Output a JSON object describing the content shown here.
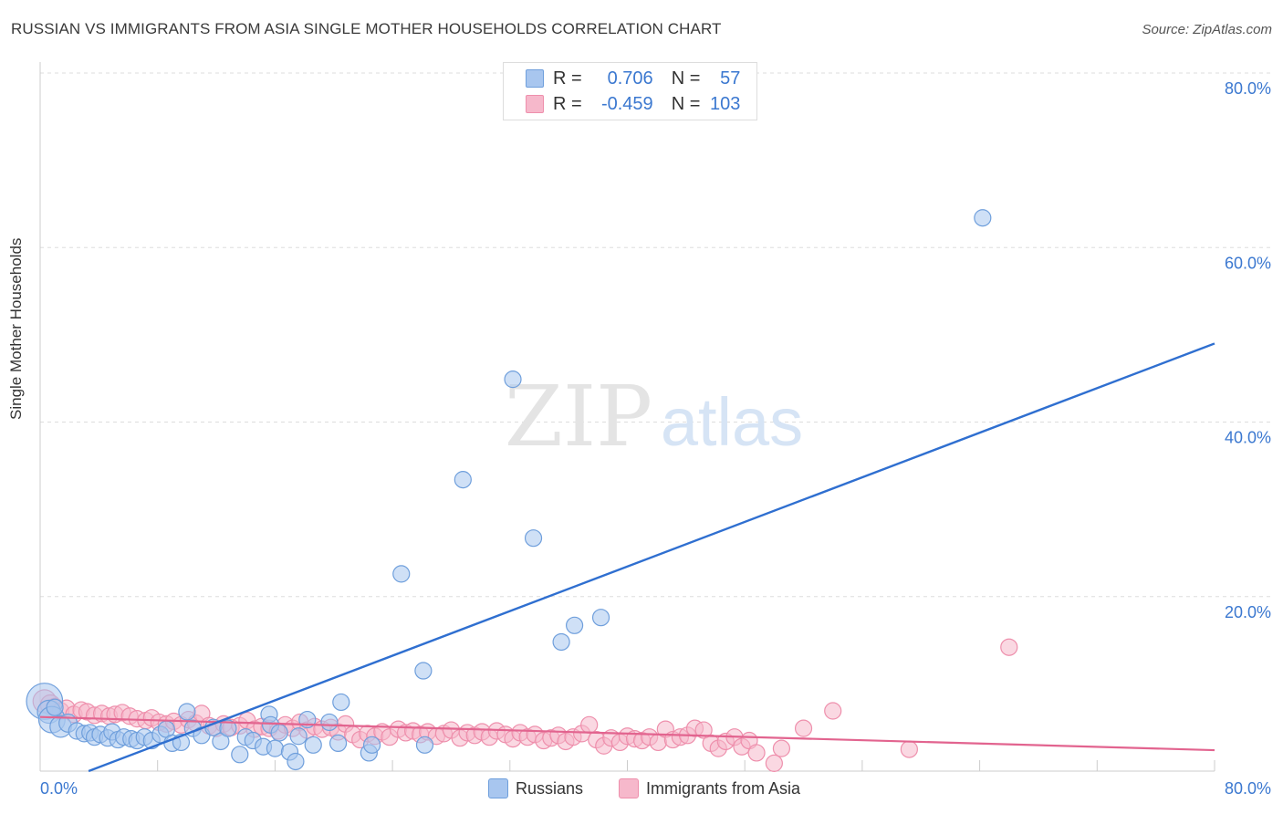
{
  "header": {
    "title": "RUSSIAN VS IMMIGRANTS FROM ASIA SINGLE MOTHER HOUSEHOLDS CORRELATION CHART",
    "source": "Source: ZipAtlas.com"
  },
  "watermark": {
    "zip": "ZIP",
    "atlas": "atlas"
  },
  "colors": {
    "russians_fill": "#a8c6ef",
    "russians_stroke": "#6f9fdc",
    "russians_line": "#2f6fd0",
    "asia_fill": "#f6b8cb",
    "asia_stroke": "#ee8fac",
    "asia_line": "#e2648f",
    "tick_label": "#3b78d0",
    "grid": "#dddddd"
  },
  "legend": {
    "rows": [
      {
        "r_label": "R =",
        "r_value": "0.706",
        "n_label": "N =",
        "n_value": "57"
      },
      {
        "r_label": "R =",
        "r_value": "-0.459",
        "n_label": "N =",
        "n_value": "103"
      }
    ]
  },
  "bottom_legend": {
    "russians": "Russians",
    "asia": "Immigrants from Asia"
  },
  "chart_data": {
    "type": "scatter",
    "title": "RUSSIAN VS IMMIGRANTS FROM ASIA SINGLE MOTHER HOUSEHOLDS CORRELATION CHART",
    "xlabel": "",
    "ylabel": "Single Mother Households",
    "xlim": [
      0,
      80
    ],
    "ylim": [
      0,
      80
    ],
    "x_tick_labels": [
      "0.0%",
      "80.0%"
    ],
    "y_ticks": [
      20,
      40,
      60,
      80
    ],
    "y_tick_labels": [
      "20.0%",
      "40.0%",
      "60.0%",
      "80.0%"
    ],
    "series": [
      {
        "name": "Russians",
        "R": 0.706,
        "N": 57,
        "trend": {
          "x": [
            3.3,
            80
          ],
          "y": [
            0,
            49
          ]
        },
        "points": [
          {
            "x": 0.3,
            "y": 8.0,
            "s": 2.2
          },
          {
            "x": 0.6,
            "y": 6.8,
            "s": 1.4
          },
          {
            "x": 0.8,
            "y": 5.9,
            "s": 1.6
          },
          {
            "x": 1.0,
            "y": 7.3,
            "s": 1
          },
          {
            "x": 1.4,
            "y": 5.1,
            "s": 1.3
          },
          {
            "x": 1.9,
            "y": 5.5,
            "s": 1.1
          },
          {
            "x": 2.5,
            "y": 4.6,
            "s": 1
          },
          {
            "x": 3.0,
            "y": 4.3,
            "s": 1
          },
          {
            "x": 3.4,
            "y": 4.4,
            "s": 1
          },
          {
            "x": 3.7,
            "y": 3.9,
            "s": 1
          },
          {
            "x": 4.1,
            "y": 4.2,
            "s": 1
          },
          {
            "x": 4.6,
            "y": 3.8,
            "s": 1
          },
          {
            "x": 4.9,
            "y": 4.5,
            "s": 1
          },
          {
            "x": 5.3,
            "y": 3.6,
            "s": 1
          },
          {
            "x": 5.7,
            "y": 3.9,
            "s": 1
          },
          {
            "x": 6.2,
            "y": 3.7,
            "s": 1
          },
          {
            "x": 6.6,
            "y": 3.5,
            "s": 1
          },
          {
            "x": 7.1,
            "y": 3.9,
            "s": 1
          },
          {
            "x": 7.6,
            "y": 3.5,
            "s": 1
          },
          {
            "x": 8.2,
            "y": 4.2,
            "s": 1
          },
          {
            "x": 8.6,
            "y": 4.8,
            "s": 1
          },
          {
            "x": 9.0,
            "y": 3.2,
            "s": 1
          },
          {
            "x": 9.6,
            "y": 3.3,
            "s": 1
          },
          {
            "x": 10.0,
            "y": 6.8,
            "s": 1
          },
          {
            "x": 10.4,
            "y": 4.9,
            "s": 1
          },
          {
            "x": 11.0,
            "y": 4.1,
            "s": 1
          },
          {
            "x": 11.8,
            "y": 5.0,
            "s": 1
          },
          {
            "x": 12.3,
            "y": 3.4,
            "s": 1
          },
          {
            "x": 12.8,
            "y": 4.9,
            "s": 1
          },
          {
            "x": 13.6,
            "y": 1.9,
            "s": 1
          },
          {
            "x": 14.0,
            "y": 3.9,
            "s": 1
          },
          {
            "x": 14.5,
            "y": 3.5,
            "s": 1
          },
          {
            "x": 15.2,
            "y": 2.8,
            "s": 1
          },
          {
            "x": 15.6,
            "y": 6.5,
            "s": 1
          },
          {
            "x": 15.7,
            "y": 5.3,
            "s": 1
          },
          {
            "x": 16.0,
            "y": 2.6,
            "s": 1
          },
          {
            "x": 16.3,
            "y": 4.4,
            "s": 1
          },
          {
            "x": 17.0,
            "y": 2.2,
            "s": 1
          },
          {
            "x": 17.4,
            "y": 1.1,
            "s": 1
          },
          {
            "x": 17.6,
            "y": 4.0,
            "s": 1
          },
          {
            "x": 18.2,
            "y": 5.9,
            "s": 1
          },
          {
            "x": 18.6,
            "y": 3.0,
            "s": 1
          },
          {
            "x": 19.7,
            "y": 5.6,
            "s": 1
          },
          {
            "x": 20.3,
            "y": 3.2,
            "s": 1
          },
          {
            "x": 20.5,
            "y": 7.9,
            "s": 1
          },
          {
            "x": 22.4,
            "y": 2.1,
            "s": 1
          },
          {
            "x": 22.6,
            "y": 3.0,
            "s": 1
          },
          {
            "x": 24.6,
            "y": 22.6,
            "s": 1
          },
          {
            "x": 26.1,
            "y": 11.5,
            "s": 1
          },
          {
            "x": 26.2,
            "y": 3.0,
            "s": 1
          },
          {
            "x": 28.8,
            "y": 33.4,
            "s": 1
          },
          {
            "x": 32.2,
            "y": 44.9,
            "s": 1
          },
          {
            "x": 33.6,
            "y": 26.7,
            "s": 1
          },
          {
            "x": 35.5,
            "y": 14.8,
            "s": 1
          },
          {
            "x": 36.4,
            "y": 16.7,
            "s": 1
          },
          {
            "x": 38.2,
            "y": 17.6,
            "s": 1
          },
          {
            "x": 64.2,
            "y": 63.4,
            "s": 1
          }
        ]
      },
      {
        "name": "Immigrants from Asia",
        "R": -0.459,
        "N": 103,
        "trend": {
          "x": [
            0,
            80
          ],
          "y": [
            6.2,
            2.4
          ]
        },
        "points": [
          {
            "x": 0.3,
            "y": 8.0,
            "s": 1.4
          },
          {
            "x": 0.7,
            "y": 7.6,
            "s": 1.2
          },
          {
            "x": 1.0,
            "y": 7.4,
            "s": 1
          },
          {
            "x": 1.4,
            "y": 6.9,
            "s": 1
          },
          {
            "x": 1.8,
            "y": 7.2,
            "s": 1
          },
          {
            "x": 2.3,
            "y": 6.5,
            "s": 1
          },
          {
            "x": 2.8,
            "y": 7.0,
            "s": 1
          },
          {
            "x": 3.2,
            "y": 6.8,
            "s": 1
          },
          {
            "x": 3.7,
            "y": 6.4,
            "s": 1
          },
          {
            "x": 4.2,
            "y": 6.6,
            "s": 1
          },
          {
            "x": 4.7,
            "y": 6.3,
            "s": 1
          },
          {
            "x": 5.1,
            "y": 6.5,
            "s": 1
          },
          {
            "x": 5.6,
            "y": 6.7,
            "s": 1
          },
          {
            "x": 6.1,
            "y": 6.3,
            "s": 1
          },
          {
            "x": 6.6,
            "y": 6.0,
            "s": 1
          },
          {
            "x": 7.2,
            "y": 5.8,
            "s": 1
          },
          {
            "x": 7.6,
            "y": 6.1,
            "s": 1
          },
          {
            "x": 8.1,
            "y": 5.6,
            "s": 1
          },
          {
            "x": 8.6,
            "y": 5.4,
            "s": 1
          },
          {
            "x": 9.1,
            "y": 5.7,
            "s": 1
          },
          {
            "x": 9.6,
            "y": 5.3,
            "s": 1
          },
          {
            "x": 10.1,
            "y": 5.9,
            "s": 1
          },
          {
            "x": 10.6,
            "y": 5.5,
            "s": 1
          },
          {
            "x": 11.0,
            "y": 6.6,
            "s": 1
          },
          {
            "x": 11.5,
            "y": 5.2,
            "s": 1
          },
          {
            "x": 12.0,
            "y": 4.9,
            "s": 1
          },
          {
            "x": 12.5,
            "y": 5.4,
            "s": 1
          },
          {
            "x": 13.0,
            "y": 5.0,
            "s": 1
          },
          {
            "x": 13.6,
            "y": 5.2,
            "s": 1
          },
          {
            "x": 14.1,
            "y": 5.8,
            "s": 1
          },
          {
            "x": 14.6,
            "y": 4.8,
            "s": 1
          },
          {
            "x": 15.1,
            "y": 5.1,
            "s": 1
          },
          {
            "x": 15.6,
            "y": 4.9,
            "s": 1
          },
          {
            "x": 16.2,
            "y": 4.6,
            "s": 1
          },
          {
            "x": 16.7,
            "y": 5.3,
            "s": 1
          },
          {
            "x": 17.2,
            "y": 4.9,
            "s": 1
          },
          {
            "x": 17.7,
            "y": 5.6,
            "s": 1
          },
          {
            "x": 18.2,
            "y": 4.7,
            "s": 1
          },
          {
            "x": 18.7,
            "y": 5.1,
            "s": 1
          },
          {
            "x": 19.2,
            "y": 4.8,
            "s": 1
          },
          {
            "x": 19.8,
            "y": 5.0,
            "s": 1
          },
          {
            "x": 20.3,
            "y": 4.5,
            "s": 1
          },
          {
            "x": 20.8,
            "y": 5.4,
            "s": 1
          },
          {
            "x": 21.3,
            "y": 4.2,
            "s": 1
          },
          {
            "x": 21.8,
            "y": 3.6,
            "s": 1
          },
          {
            "x": 22.3,
            "y": 4.3,
            "s": 1
          },
          {
            "x": 22.8,
            "y": 4.0,
            "s": 1
          },
          {
            "x": 23.3,
            "y": 4.5,
            "s": 1
          },
          {
            "x": 23.8,
            "y": 3.9,
            "s": 1
          },
          {
            "x": 24.4,
            "y": 4.8,
            "s": 1
          },
          {
            "x": 24.9,
            "y": 4.4,
            "s": 1
          },
          {
            "x": 25.4,
            "y": 4.6,
            "s": 1
          },
          {
            "x": 25.9,
            "y": 4.2,
            "s": 1
          },
          {
            "x": 26.4,
            "y": 4.5,
            "s": 1
          },
          {
            "x": 27.0,
            "y": 4.0,
            "s": 1
          },
          {
            "x": 27.5,
            "y": 4.3,
            "s": 1
          },
          {
            "x": 28.0,
            "y": 4.7,
            "s": 1
          },
          {
            "x": 28.6,
            "y": 3.8,
            "s": 1
          },
          {
            "x": 29.1,
            "y": 4.4,
            "s": 1
          },
          {
            "x": 29.6,
            "y": 4.1,
            "s": 1
          },
          {
            "x": 30.1,
            "y": 4.5,
            "s": 1
          },
          {
            "x": 30.6,
            "y": 3.9,
            "s": 1
          },
          {
            "x": 31.1,
            "y": 4.6,
            "s": 1
          },
          {
            "x": 31.7,
            "y": 4.2,
            "s": 1
          },
          {
            "x": 32.2,
            "y": 3.7,
            "s": 1
          },
          {
            "x": 32.7,
            "y": 4.4,
            "s": 1
          },
          {
            "x": 33.2,
            "y": 3.9,
            "s": 1
          },
          {
            "x": 33.7,
            "y": 4.2,
            "s": 1
          },
          {
            "x": 34.3,
            "y": 3.5,
            "s": 1
          },
          {
            "x": 34.8,
            "y": 3.8,
            "s": 1
          },
          {
            "x": 35.3,
            "y": 4.1,
            "s": 1
          },
          {
            "x": 35.8,
            "y": 3.4,
            "s": 1
          },
          {
            "x": 36.3,
            "y": 3.9,
            "s": 1
          },
          {
            "x": 36.9,
            "y": 4.3,
            "s": 1
          },
          {
            "x": 37.4,
            "y": 5.3,
            "s": 1
          },
          {
            "x": 37.9,
            "y": 3.6,
            "s": 1
          },
          {
            "x": 38.4,
            "y": 2.9,
            "s": 1
          },
          {
            "x": 38.9,
            "y": 3.8,
            "s": 1
          },
          {
            "x": 39.5,
            "y": 3.3,
            "s": 1
          },
          {
            "x": 40.0,
            "y": 4.0,
            "s": 1
          },
          {
            "x": 40.5,
            "y": 3.7,
            "s": 1
          },
          {
            "x": 41.0,
            "y": 3.5,
            "s": 1
          },
          {
            "x": 41.5,
            "y": 3.9,
            "s": 1
          },
          {
            "x": 42.1,
            "y": 3.3,
            "s": 1
          },
          {
            "x": 42.6,
            "y": 4.8,
            "s": 1
          },
          {
            "x": 43.1,
            "y": 3.6,
            "s": 1
          },
          {
            "x": 43.6,
            "y": 3.9,
            "s": 1
          },
          {
            "x": 44.1,
            "y": 4.1,
            "s": 1
          },
          {
            "x": 44.6,
            "y": 4.9,
            "s": 1
          },
          {
            "x": 45.2,
            "y": 4.7,
            "s": 1
          },
          {
            "x": 45.7,
            "y": 3.2,
            "s": 1
          },
          {
            "x": 46.2,
            "y": 2.6,
            "s": 1
          },
          {
            "x": 46.7,
            "y": 3.4,
            "s": 1
          },
          {
            "x": 47.3,
            "y": 3.9,
            "s": 1
          },
          {
            "x": 47.8,
            "y": 2.8,
            "s": 1
          },
          {
            "x": 48.3,
            "y": 3.5,
            "s": 1
          },
          {
            "x": 48.8,
            "y": 2.1,
            "s": 1
          },
          {
            "x": 50.0,
            "y": 0.9,
            "s": 1
          },
          {
            "x": 50.5,
            "y": 2.6,
            "s": 1
          },
          {
            "x": 52.0,
            "y": 4.9,
            "s": 1
          },
          {
            "x": 54.0,
            "y": 6.9,
            "s": 1
          },
          {
            "x": 59.2,
            "y": 2.5,
            "s": 1
          },
          {
            "x": 66.0,
            "y": 14.2,
            "s": 1
          }
        ]
      }
    ]
  }
}
